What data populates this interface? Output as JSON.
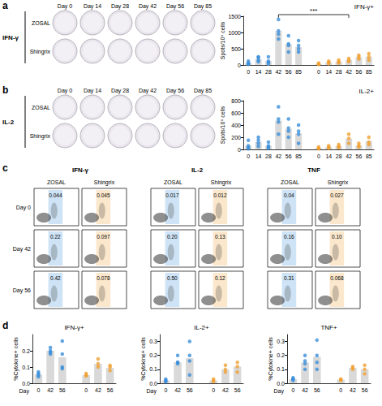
{
  "panel_labels": [
    "a",
    "b",
    "c",
    "d"
  ],
  "groups": [
    {
      "name": "ZOSAL",
      "color": "#3a8fd9"
    },
    {
      "name": "Shingrix",
      "color": "#f0a032"
    }
  ],
  "wells": {
    "days": [
      "Day 0",
      "Day 14",
      "Day 28",
      "Day 42",
      "Day 56",
      "Day 85"
    ],
    "rows": [
      "IFN-γ",
      "IL-2"
    ]
  },
  "chart_data": [
    {
      "type": "bar",
      "title": "IFN-γ+",
      "y_label": "Spots/10⁶ cells",
      "categories": [
        "0",
        "14",
        "28",
        "42",
        "56",
        "85",
        null,
        "0",
        "14",
        "28",
        "42",
        "56",
        "85"
      ],
      "color": "#d9d9d9",
      "ylim": [
        0,
        1500
      ],
      "yticks": [
        0,
        500,
        1000,
        1500
      ],
      "series": [
        {
          "color": "#3a8fd9",
          "values": [
            60,
            180,
            120,
            1050,
            640,
            560,
            null,
            null,
            null,
            null,
            null,
            null,
            null
          ],
          "points": [
            [
              120,
              60,
              40,
              20
            ],
            [
              250,
              230,
              150,
              100
            ],
            [
              250,
              120,
              80,
              30
            ],
            [
              1400,
              1050,
              950,
              800
            ],
            [
              900,
              650,
              600,
              400
            ],
            [
              750,
              600,
              500,
              400
            ],
            [],
            [],
            [],
            [],
            [],
            [],
            []
          ]
        },
        {
          "color": "#f0a032",
          "values": [
            null,
            null,
            null,
            null,
            null,
            null,
            null,
            33,
            80,
            103,
            150,
            243,
            250
          ],
          "points": [
            [],
            [],
            [],
            [],
            [],
            [],
            [],
            [
              60,
              30,
              10
            ],
            [
              120,
              80,
              40
            ],
            [
              150,
              100,
              60
            ],
            [
              200,
              150,
              100
            ],
            [
              300,
              250,
              180
            ],
            [
              350,
              250,
              150
            ]
          ]
        }
      ],
      "annotations": [
        {
          "text": "***",
          "from": 3,
          "to": 10
        }
      ]
    },
    {
      "type": "bar",
      "title": "IL-2+",
      "y_label": "Spots/10⁶ cells",
      "categories": [
        "0",
        "14",
        "28",
        "42",
        "56",
        "85",
        null,
        "0",
        "14",
        "28",
        "42",
        "56",
        "85"
      ],
      "color": "#d9d9d9",
      "ylim": [
        0,
        800
      ],
      "yticks": [
        0,
        200,
        400,
        600,
        800
      ],
      "series": [
        {
          "color": "#3a8fd9",
          "values": [
            63,
            125,
            60,
            475,
            338,
            263,
            null,
            null,
            null,
            null,
            null,
            null,
            null
          ],
          "points": [
            [
              150,
              60,
              30,
              10
            ],
            [
              200,
              150,
              100,
              50
            ],
            [
              120,
              60,
              40,
              20
            ],
            [
              700,
              500,
              450,
              250
            ],
            [
              500,
              350,
              300,
              200
            ],
            [
              400,
              300,
              250,
              100
            ],
            [],
            [],
            [],
            [],
            [],
            [],
            []
          ]
        },
        {
          "color": "#f0a032",
          "values": [
            null,
            null,
            null,
            null,
            null,
            null,
            null,
            23,
            40,
            53,
            177,
            67,
            133
          ],
          "points": [
            [],
            [],
            [],
            [],
            [],
            [],
            [],
            [
              40,
              20,
              10
            ],
            [
              60,
              40,
              20
            ],
            [
              80,
              50,
              30
            ],
            [
              250,
              180,
              100
            ],
            [
              100,
              60,
              40
            ],
            [
              200,
              120,
              80
            ]
          ]
        }
      ]
    },
    {
      "type": "bar",
      "title": "IFN-γ+",
      "x_label": "Day",
      "y_label": "%Cytokine+ cells",
      "categories": [
        "0",
        "42",
        "56",
        null,
        "0",
        "42",
        "56"
      ],
      "color": "#d9d9d9",
      "ylim": [
        0,
        0.3
      ],
      "yticks": [
        {
          "value": 0,
          "label": "0.0"
        },
        0.1,
        0.2
      ],
      "series": [
        {
          "color": "#3a8fd9",
          "values": [
            0.055,
            0.2,
            0.16,
            null,
            null,
            null,
            null
          ],
          "points": [
            [
              0.04,
              0.06,
              0.07,
              0.05
            ],
            [
              0.22,
              0.2,
              0.18,
              0.19
            ],
            [
              0.26,
              0.18,
              0.1,
              0.09
            ],
            [],
            [],
            [],
            []
          ]
        },
        {
          "color": "#f0a032",
          "values": [
            null,
            null,
            null,
            null,
            0.05,
            0.12,
            0.095
          ],
          "points": [
            [],
            [],
            [],
            [],
            [
              0.045,
              0.05,
              0.06
            ],
            [
              0.1,
              0.12,
              0.15
            ],
            [
              0.078,
              0.1,
              0.11
            ]
          ]
        }
      ]
    },
    {
      "type": "bar",
      "title": "IL-2+",
      "x_label": "Day",
      "y_label": "%Cytokine+ cells",
      "categories": [
        "0",
        "42",
        "56",
        null,
        "0",
        "42",
        "56"
      ],
      "color": "#d9d9d9",
      "ylim": [
        0,
        0.35
      ],
      "yticks": [
        {
          "value": 0,
          "label": "0.0"
        },
        0.1,
        0.2,
        0.3
      ],
      "series": [
        {
          "color": "#3a8fd9",
          "values": [
            0.02,
            0.15,
            0.18,
            null,
            null,
            null,
            null
          ],
          "points": [
            [
              0.017,
              0.02,
              0.03,
              0.01
            ],
            [
              0.2,
              0.15,
              0.14,
              0.15
            ],
            [
              0.3,
              0.2,
              0.16,
              0.06
            ],
            [],
            [],
            [],
            []
          ]
        },
        {
          "color": "#f0a032",
          "values": [
            null,
            null,
            null,
            null,
            0.02,
            0.1,
            0.12
          ],
          "points": [
            [],
            [],
            [],
            [],
            [
              0.012,
              0.02,
              0.03
            ],
            [
              0.13,
              0.08,
              0.1
            ],
            [
              0.12,
              0.15,
              0.08
            ]
          ]
        }
      ]
    },
    {
      "type": "bar",
      "title": "TNF+",
      "x_label": "Day",
      "y_label": "%Cytokine+ cells",
      "categories": [
        "0",
        "42",
        "56",
        null,
        "0",
        "42",
        "56"
      ],
      "color": "#d9d9d9",
      "ylim": [
        0,
        0.35
      ],
      "yticks": [
        {
          "value": 0,
          "label": "0.0"
        },
        0.1,
        0.2,
        0.3
      ],
      "series": [
        {
          "color": "#3a8fd9",
          "values": [
            0.03,
            0.15,
            0.19,
            null,
            null,
            null,
            null
          ],
          "points": [
            [
              0.04,
              0.03,
              0.02,
              0.03
            ],
            [
              0.16,
              0.14,
              0.2,
              0.1
            ],
            [
              0.31,
              0.2,
              0.15,
              0.1
            ],
            [],
            [],
            [],
            []
          ]
        },
        {
          "color": "#f0a032",
          "values": [
            null,
            null,
            null,
            null,
            0.026,
            0.11,
            0.1
          ],
          "points": [
            [],
            [],
            [],
            [],
            [
              0.027,
              0.03,
              0.02
            ],
            [
              0.1,
              0.12,
              0.11
            ],
            [
              0.068,
              0.1,
              0.13
            ]
          ]
        }
      ]
    }
  ],
  "flow": {
    "days": [
      "Day 0",
      "Day 42",
      "Day 56"
    ],
    "cytokines": [
      {
        "name": "IFN-γ",
        "values": [
          [
            "0.044",
            "0.045"
          ],
          [
            "0.22",
            "0.097"
          ],
          [
            "0.42",
            "0.078"
          ]
        ]
      },
      {
        "name": "IL-2",
        "values": [
          [
            "0.017",
            "0.012"
          ],
          [
            "0.20",
            "0.13"
          ],
          [
            "0.50",
            "0.12"
          ]
        ]
      },
      {
        "name": "TNF",
        "values": [
          [
            "0.04",
            "0.027"
          ],
          [
            "0.16",
            "0.10"
          ],
          [
            "0.31",
            "0.068"
          ]
        ]
      }
    ]
  }
}
